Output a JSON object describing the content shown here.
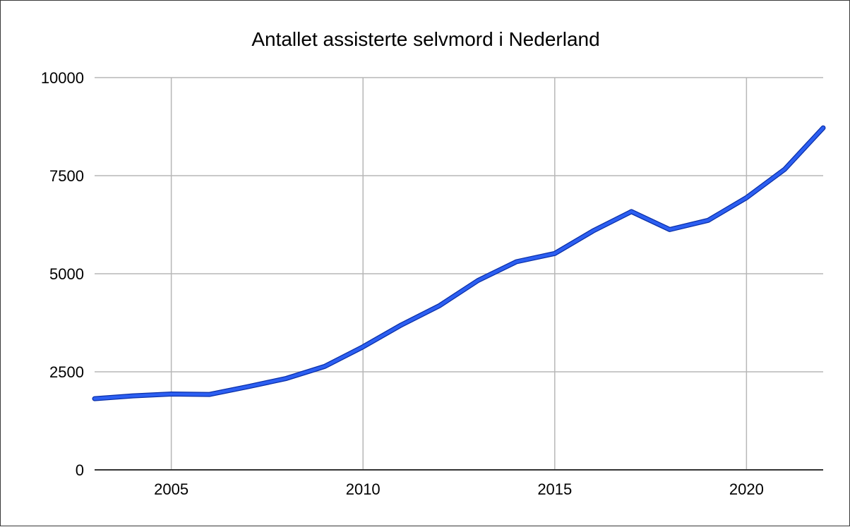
{
  "chart_data": {
    "type": "line",
    "title": "Antallet assisterte selvmord i Nederland",
    "xlabel": "",
    "ylabel": "",
    "xlim": [
      2003,
      2022
    ],
    "ylim": [
      0,
      10000
    ],
    "x_ticks": [
      2005,
      2010,
      2015,
      2020
    ],
    "x_tick_labels": [
      "2005",
      "2010",
      "2015",
      "2020"
    ],
    "y_ticks": [
      0,
      2500,
      5000,
      7500,
      10000
    ],
    "y_tick_labels": [
      "0",
      "2500",
      "5000",
      "7500",
      "10000"
    ],
    "grid": true,
    "legend": "none",
    "series": [
      {
        "color": "#2c5ff2",
        "x": [
          2003,
          2004,
          2005,
          2006,
          2007,
          2008,
          2009,
          2010,
          2011,
          2012,
          2013,
          2014,
          2015,
          2016,
          2017,
          2018,
          2019,
          2020,
          2021,
          2022
        ],
        "y": [
          1815,
          1886,
          1933,
          1923,
          2120,
          2331,
          2636,
          3136,
          3695,
          4188,
          4829,
          5306,
          5516,
          6091,
          6585,
          6126,
          6361,
          6938,
          7666,
          8720
        ]
      }
    ]
  }
}
